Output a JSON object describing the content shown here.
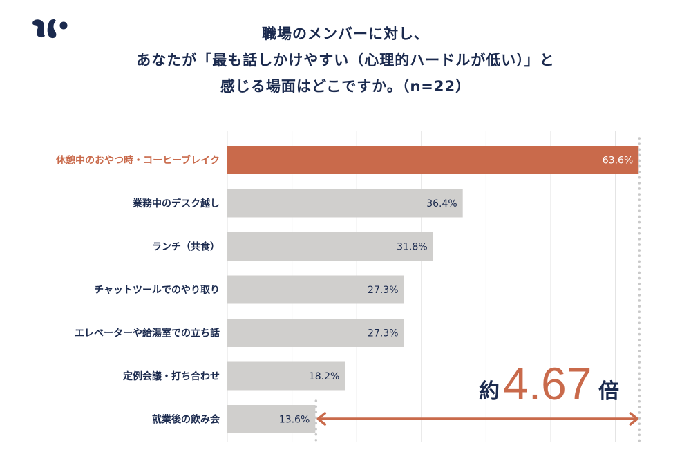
{
  "logo": {
    "icon": "squirrel-logo-icon",
    "color": "#1b2a4e"
  },
  "title_lines": [
    "職場のメンバーに対し、",
    "あなたが「最も話しかけやすい（心理的ハードルが低い）」と",
    "感じる場面はどこですか。（n=22）"
  ],
  "colors": {
    "accent": "#c96a4b",
    "bar": "#d0cfcd",
    "text": "#1b2a4e",
    "grid": "#e2e2e2",
    "dots": "#c9c9c9"
  },
  "chart_data": {
    "type": "bar",
    "orientation": "horizontal",
    "title": "職場のメンバーに対し、あなたが「最も話しかけやすい（心理的ハードルが低い）」と感じる場面はどこですか。（n=22）",
    "categories": [
      "休憩中のおやつ時・コーヒーブレイク",
      "業務中のデスク越し",
      "ランチ（共食）",
      "チャットツールでのやり取り",
      "エレベーターや給湯室での立ち話",
      "定例会議・打ち合わせ",
      "就業後の飲み会"
    ],
    "values": [
      63.6,
      36.4,
      31.8,
      27.3,
      27.3,
      18.2,
      13.6
    ],
    "value_labels": [
      "63.6%",
      "36.4%",
      "31.8%",
      "27.3%",
      "27.3%",
      "18.2%",
      "13.6%"
    ],
    "highlight_index": 0,
    "xlim": [
      0,
      65
    ],
    "grid_step": 10,
    "grid": true,
    "xlabel": "",
    "ylabel": "",
    "annotation": {
      "prefix": "約",
      "value": "4.67",
      "suffix": "倍",
      "from_value": 13.6,
      "to_value": 63.6
    }
  }
}
